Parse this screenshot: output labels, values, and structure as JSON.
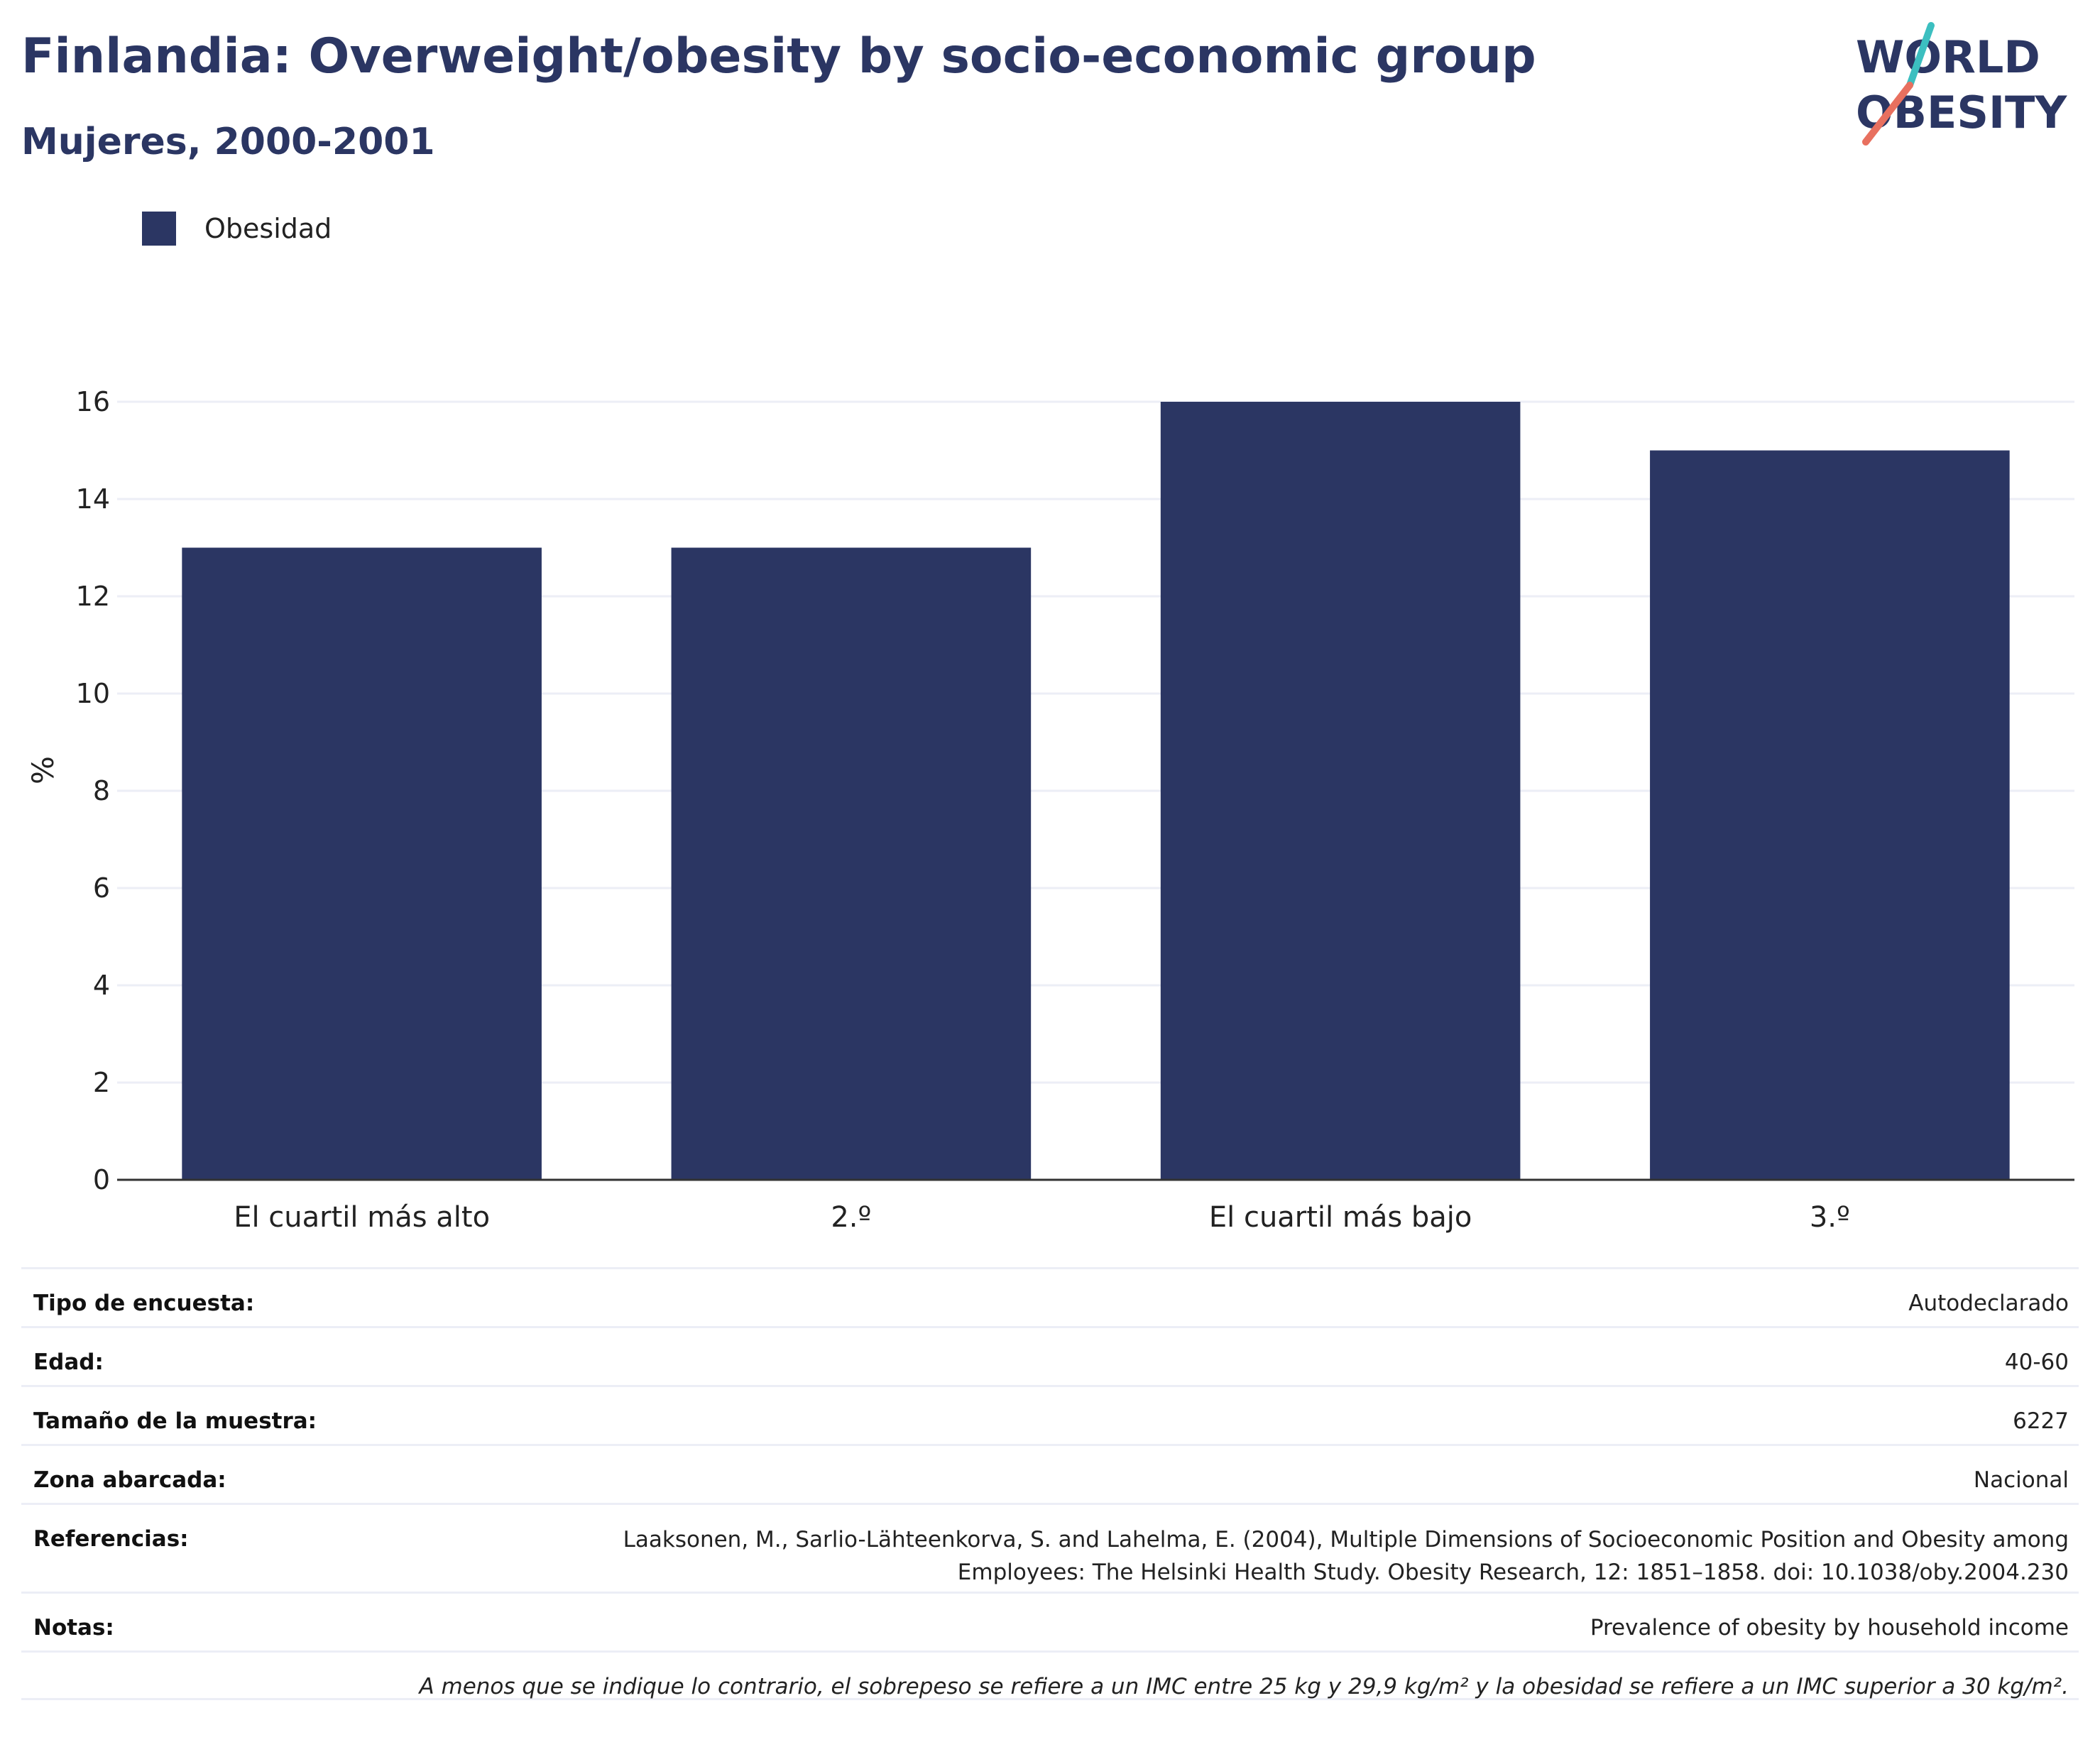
{
  "header": {
    "title": "Finlandia: Overweight/obesity by socio-economic group",
    "subtitle": "Mujeres, 2000-2001"
  },
  "logo": {
    "line1": "WORLD",
    "line2": "OBESITY"
  },
  "colors": {
    "bar": "#2b3663",
    "title": "#2b3663",
    "grid": "#eceef6",
    "logo_teal": "#3cbfc0",
    "logo_coral": "#e8705f"
  },
  "chart_data": {
    "type": "bar",
    "categories": [
      "El cuartil más alto",
      "2.º",
      "El cuartil más bajo",
      "3.º"
    ],
    "series": [
      {
        "name": "Obesidad",
        "values": [
          13,
          13,
          16,
          15
        ]
      }
    ],
    "ylabel": "%",
    "xlabel": "",
    "ylim": [
      0,
      16
    ],
    "yticks": [
      0,
      2,
      4,
      6,
      8,
      10,
      12,
      14,
      16
    ],
    "grid": true,
    "legend": "top-left"
  },
  "info": {
    "survey_type_label": "Tipo de encuesta:",
    "survey_type_value": "Autodeclarado",
    "age_label": "Edad:",
    "age_value": "40-60",
    "sample_label": "Tamaño de la muestra:",
    "sample_value": "6227",
    "area_label": "Zona abarcada:",
    "area_value": "Nacional",
    "references_label": "Referencias:",
    "references_line1": "Laaksonen, M., Sarlio-Lähteenkorva, S. and Lahelma, E. (2004), Multiple Dimensions of Socioeconomic Position and Obesity among",
    "references_line2": "Employees: The Helsinki Health Study. Obesity Research, 12: 1851–1858. doi: 10.1038/oby.2004.230",
    "notes_label": "Notas:",
    "notes_value": "Prevalence of obesity by household income",
    "footnote": "A menos que se indique lo contrario, el sobrepeso se refiere a un IMC entre 25 kg y 29,9 kg/m² y la obesidad se refiere a un IMC superior a 30 kg/m²."
  }
}
